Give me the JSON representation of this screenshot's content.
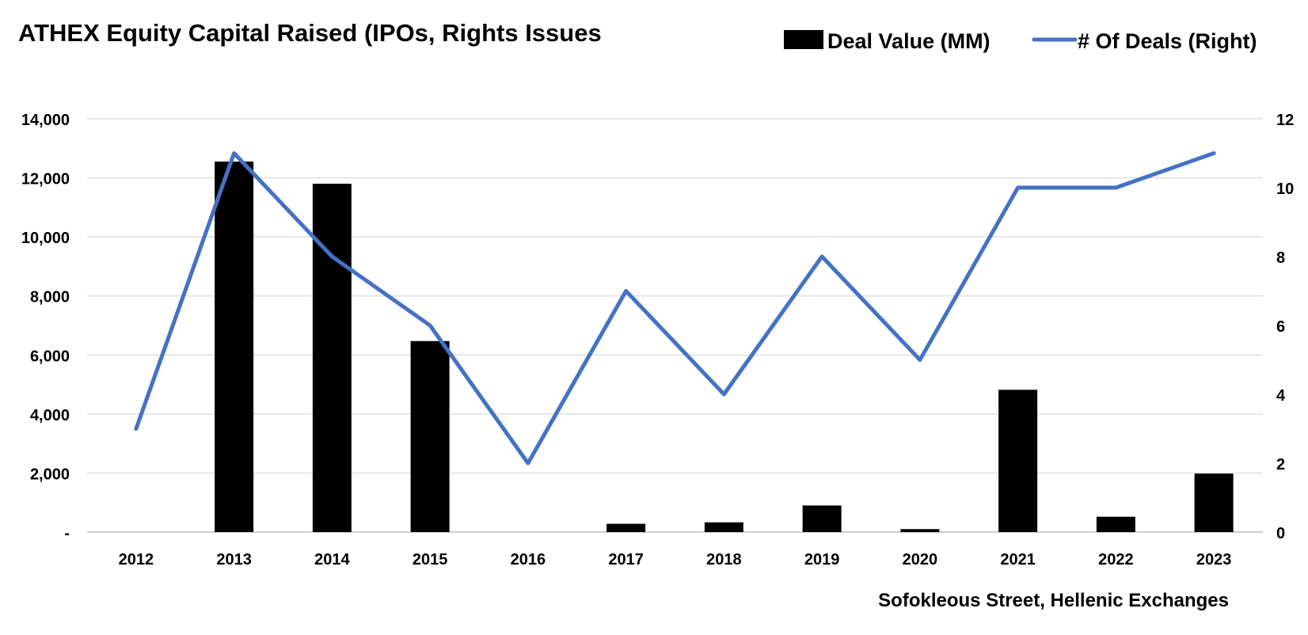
{
  "chart_data": {
    "type": "bar",
    "title": "ATHEX Equity Capital Raised (IPOs, Rights Issues",
    "source": "Sofokleous Street, Hellenic Exchanges",
    "categories": [
      "2012",
      "2013",
      "2014",
      "2015",
      "2016",
      "2017",
      "2018",
      "2019",
      "2020",
      "2021",
      "2022",
      "2023"
    ],
    "series": [
      {
        "name": "Deal Value (MM)",
        "type": "bar",
        "axis": "left",
        "color": "#000000",
        "values": [
          0,
          12550,
          11800,
          6470,
          0,
          280,
          330,
          900,
          100,
          4820,
          520,
          1980
        ]
      },
      {
        "name": "# Of Deals (Right)",
        "type": "line",
        "axis": "right",
        "color": "#4472C4",
        "values": [
          3,
          11,
          8,
          6,
          2,
          7,
          4,
          8,
          5,
          10,
          10,
          11
        ]
      }
    ],
    "y_left": {
      "lim": [
        0,
        14000
      ],
      "ticks": [
        0,
        2000,
        4000,
        6000,
        8000,
        10000,
        12000,
        14000
      ],
      "tick_labels": [
        "-",
        "2,000",
        "4,000",
        "6,000",
        "8,000",
        "10,000",
        "12,000",
        "14,000"
      ]
    },
    "y_right": {
      "lim": [
        0,
        12
      ],
      "ticks": [
        0,
        2,
        4,
        6,
        8,
        10,
        12
      ],
      "tick_labels": [
        "0",
        "2",
        "4",
        "6",
        "8",
        "10",
        "12"
      ]
    },
    "grid": true,
    "legend_position": "top-right"
  }
}
